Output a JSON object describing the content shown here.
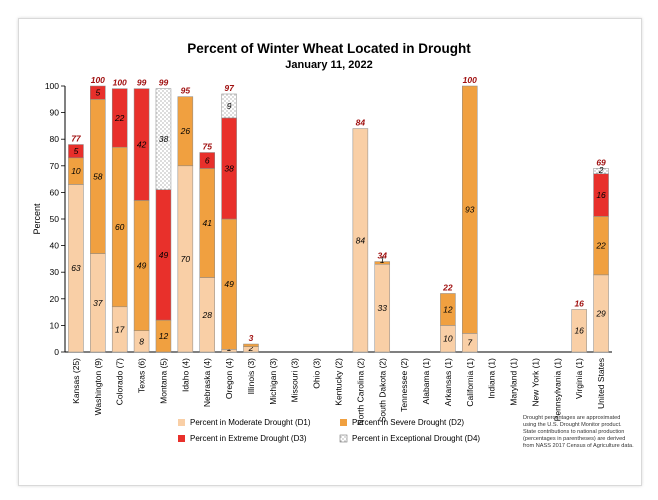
{
  "chart_data": {
    "type": "bar",
    "stacked": true,
    "title": "Percent of Winter Wheat Located in Drought",
    "subtitle": "January 11, 2022",
    "ylabel": "Percent",
    "xlabel": "",
    "ylim": [
      0,
      100
    ],
    "yticks": [
      "0",
      "10",
      "20",
      "30",
      "40",
      "50",
      "60",
      "70",
      "80",
      "90",
      "100"
    ],
    "grid": false,
    "legend_position": "bottom",
    "categories": [
      "Kansas (25)",
      "Washington (9)",
      "Colorado (7)",
      "Texas (6)",
      "Montana (5)",
      "Idaho (4)",
      "Nebraska (4)",
      "Oregon (4)",
      "Illinois (3)",
      "Michigan (3)",
      "Missouri (3)",
      "Ohio (3)",
      "Kentucky (2)",
      "North Carolina (2)",
      "South Dakota (2)",
      "Tennessee (2)",
      "Alabama (1)",
      "Arkansas (1)",
      "California (1)",
      "Indiana (1)",
      "Maryland (1)",
      "New York (1)",
      "Pennsylvania (1)",
      "Virginia (1)",
      "United States"
    ],
    "series": [
      {
        "name": "Percent in Moderate Drought (D1)",
        "color": "#f9cfa6",
        "hatch": false,
        "values": [
          63,
          37,
          17,
          8,
          0,
          70,
          28,
          1,
          2,
          0,
          0,
          0,
          0,
          84,
          33,
          0,
          0,
          10,
          7,
          0,
          0,
          0,
          0,
          16,
          29
        ],
        "labels": [
          "63",
          "37",
          "17",
          "8",
          "",
          "70",
          "28",
          "1",
          "2",
          "",
          "",
          "",
          "",
          "84",
          "33",
          "",
          "",
          "10",
          "7",
          "",
          "",
          "",
          "",
          "16",
          "29"
        ]
      },
      {
        "name": "Percent in Severe Drought (D2)",
        "color": "#f0a040",
        "hatch": false,
        "values": [
          10,
          58,
          60,
          49,
          12,
          26,
          41,
          49,
          1,
          0,
          0,
          0,
          0,
          0,
          1,
          0,
          0,
          12,
          93,
          0,
          0,
          0,
          0,
          0,
          22
        ],
        "labels": [
          "10",
          "58",
          "60",
          "49",
          "12",
          "26",
          "41",
          "49",
          "",
          "",
          "",
          "",
          "",
          "",
          "1",
          "",
          "",
          "12",
          "93",
          "",
          "",
          "",
          "",
          "",
          "22"
        ]
      },
      {
        "name": "Percent in Extreme Drought (D3)",
        "color": "#e8302b",
        "hatch": false,
        "values": [
          5,
          5,
          22,
          42,
          49,
          0,
          6,
          38,
          0,
          0,
          0,
          0,
          0,
          0,
          0,
          0,
          0,
          0,
          0,
          0,
          0,
          0,
          0,
          0,
          16
        ],
        "labels": [
          "5",
          "5",
          "22",
          "42",
          "49",
          "",
          "6",
          "38",
          "",
          "",
          "",
          "",
          "",
          "",
          "",
          "",
          "",
          "",
          "",
          "",
          "",
          "",
          "",
          "",
          "16"
        ]
      },
      {
        "name": "Percent in Exceptional Drought (D4)",
        "color": "#ffffff",
        "hatch": true,
        "values": [
          0,
          0,
          0,
          0,
          38,
          0,
          0,
          9,
          0,
          0,
          0,
          0,
          0,
          0,
          0,
          0,
          0,
          0,
          0,
          0,
          0,
          0,
          0,
          0,
          2
        ],
        "labels": [
          "",
          "",
          "",
          "",
          "38",
          "",
          "",
          "9",
          "",
          "",
          "",
          "",
          "",
          "",
          "",
          "",
          "",
          "",
          "",
          "",
          "",
          "",
          "",
          "",
          "2"
        ]
      }
    ],
    "totals": [
      "77",
      "100",
      "100",
      "99",
      "99",
      "95",
      "75",
      "97",
      "3",
      "",
      "",
      "",
      "",
      "84",
      "34",
      "",
      "",
      "22",
      "100",
      "",
      "",
      "",
      "",
      "16",
      "69"
    ],
    "total_color": "#a01010",
    "footnote": [
      "Drought percentages are approximated",
      "using the U.S. Drought Monitor product.",
      "State contributions to national production",
      "(percentages in parentheses) are derived",
      "from NASS 2017 Census of Agriculture data."
    ]
  }
}
